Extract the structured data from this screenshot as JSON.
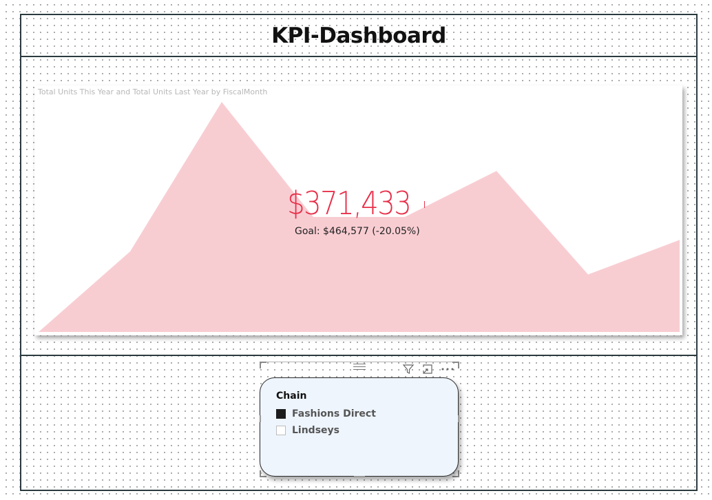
{
  "header": {
    "title": "KPI-Dashboard"
  },
  "kpi": {
    "subtitle": "Total Units This Year and Total Units Last Year by FiscalMonth",
    "value": "$371,433",
    "goal": "Goal: $464,577 (-20.05%)",
    "fill_color": "#f8cdd2",
    "value_color": "#e8304a"
  },
  "chart_data": {
    "type": "area",
    "title": "Total Units This Year and Total Units Last Year by FiscalMonth",
    "series": [
      {
        "name": "Total Units This Year",
        "values": [
          0,
          35,
          100,
          50,
          50,
          70,
          25,
          40
        ]
      }
    ],
    "ylim": [
      0,
      100
    ],
    "grid": false,
    "legend": "none"
  },
  "slicer": {
    "title": "Chain",
    "items": [
      {
        "label": "Fashions Direct",
        "checked": true
      },
      {
        "label": "Lindseys",
        "checked": false
      }
    ],
    "icons": {
      "grip": "drag-handle-icon",
      "filter": "filter-icon",
      "focus": "focus-mode-icon",
      "more": "more-options-icon"
    }
  }
}
